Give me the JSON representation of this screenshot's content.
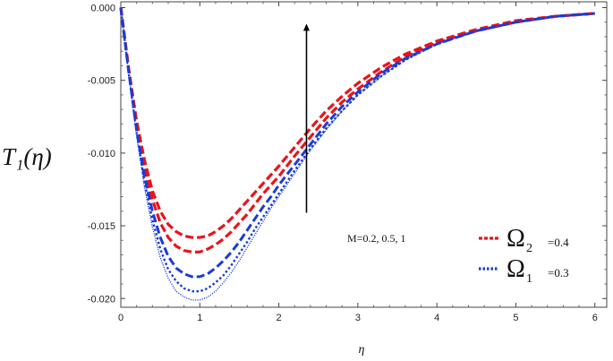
{
  "chart_data": {
    "type": "line",
    "title": "",
    "xlabel": "η",
    "ylabel": "T₁(η)",
    "xlim": [
      0,
      6.15
    ],
    "ylim": [
      -0.0206,
      0.0004
    ],
    "xticks": [
      {
        "value": 0,
        "label": "0"
      },
      {
        "value": 1,
        "label": "1"
      },
      {
        "value": 2,
        "label": "2"
      },
      {
        "value": 3,
        "label": "3"
      },
      {
        "value": 4,
        "label": "4"
      },
      {
        "value": 5,
        "label": "5"
      },
      {
        "value": 6,
        "label": "6"
      }
    ],
    "yticks": [
      {
        "value": 0,
        "label": "0.000"
      },
      {
        "value": -0.005,
        "label": "-0.005"
      },
      {
        "value": -0.01,
        "label": "-0.010"
      },
      {
        "value": -0.015,
        "label": "-0.015"
      },
      {
        "value": -0.02,
        "label": "-0.020"
      }
    ],
    "grid": false,
    "annotation": {
      "text": "M=0.2, 0.5, 1",
      "arrow_x": 2.35,
      "arrow_from": -0.0141,
      "arrow_to": -0.0011
    },
    "legend": {
      "position": "bottom-right",
      "entries": [
        {
          "symbol": "Ω",
          "subscript": "2",
          "value": "=0.4",
          "color": "#e8141b"
        },
        {
          "symbol": "Ω",
          "subscript": "1",
          "value": "=0.3",
          "color": "#1a3cd6"
        }
      ]
    },
    "series": [
      {
        "group": "Ω2=0.4",
        "M": 0.2,
        "color": "#e8141b",
        "style": "dashed",
        "width": 3.2,
        "x": [
          0,
          0.1,
          0.2,
          0.3,
          0.4,
          0.5,
          0.6,
          0.7,
          0.8,
          0.9,
          1.0,
          1.1,
          1.2,
          1.3,
          1.4,
          1.5,
          1.6,
          1.7,
          1.8,
          1.9,
          2.0,
          2.2,
          2.4,
          2.6,
          2.8,
          3.0,
          3.3,
          3.6,
          4.0,
          4.5,
          5.0,
          5.5,
          6.0
        ],
        "y": [
          0,
          -0.0042,
          -0.0078,
          -0.0105,
          -0.0126,
          -0.014,
          -0.0149,
          -0.0154,
          -0.0157,
          -0.0158,
          -0.0158,
          -0.0157,
          -0.0154,
          -0.015,
          -0.0145,
          -0.0139,
          -0.0133,
          -0.0127,
          -0.0121,
          -0.0115,
          -0.0109,
          -0.0096,
          -0.0083,
          -0.0071,
          -0.0061,
          -0.0052,
          -0.0041,
          -0.0032,
          -0.0023,
          -0.0015,
          -0.0009,
          -0.0006,
          -0.0004
        ]
      },
      {
        "group": "Ω2=0.4",
        "M": 0.5,
        "color": "#e8141b",
        "style": "dashed",
        "width": 3.2,
        "x": [
          0,
          0.1,
          0.2,
          0.3,
          0.4,
          0.5,
          0.6,
          0.7,
          0.8,
          0.9,
          1.0,
          1.1,
          1.2,
          1.3,
          1.4,
          1.5,
          1.6,
          1.7,
          1.8,
          1.9,
          2.0,
          2.2,
          2.4,
          2.6,
          2.8,
          3.0,
          3.3,
          3.6,
          4.0,
          4.5,
          5.0,
          5.5,
          6.0
        ],
        "y": [
          0,
          -0.0043,
          -0.0081,
          -0.011,
          -0.0132,
          -0.0148,
          -0.0158,
          -0.0164,
          -0.0167,
          -0.0168,
          -0.0168,
          -0.0166,
          -0.0163,
          -0.0159,
          -0.0154,
          -0.0148,
          -0.0142,
          -0.0135,
          -0.0128,
          -0.0122,
          -0.0116,
          -0.0102,
          -0.0089,
          -0.0076,
          -0.0065,
          -0.0056,
          -0.0044,
          -0.0034,
          -0.0024,
          -0.0016,
          -0.001,
          -0.0006,
          -0.0004
        ]
      },
      {
        "group": "Ω1=0.3",
        "M": 0.2,
        "color": "#1a3cd6",
        "style": "dashed",
        "width": 3.0,
        "x": [
          0,
          0.1,
          0.2,
          0.3,
          0.4,
          0.5,
          0.6,
          0.7,
          0.8,
          0.9,
          1.0,
          1.1,
          1.2,
          1.3,
          1.4,
          1.5,
          1.6,
          1.7,
          1.8,
          1.9,
          2.0,
          2.2,
          2.4,
          2.6,
          2.8,
          3.0,
          3.3,
          3.6,
          4.0,
          4.5,
          5.0,
          5.5,
          6.0
        ],
        "y": [
          0,
          -0.0044,
          -0.0084,
          -0.0116,
          -0.014,
          -0.0158,
          -0.0171,
          -0.0179,
          -0.0183,
          -0.0185,
          -0.0185,
          -0.0183,
          -0.0179,
          -0.0174,
          -0.0168,
          -0.0161,
          -0.0153,
          -0.0145,
          -0.0137,
          -0.013,
          -0.0122,
          -0.0108,
          -0.0094,
          -0.008,
          -0.0068,
          -0.0058,
          -0.0045,
          -0.0035,
          -0.0025,
          -0.0016,
          -0.001,
          -0.0006,
          -0.0004
        ]
      },
      {
        "group": "Ω1=0.3",
        "M": 0.5,
        "color": "#1a3cd6",
        "style": "dotted",
        "width": 2.4,
        "x": [
          0,
          0.1,
          0.2,
          0.3,
          0.4,
          0.5,
          0.6,
          0.7,
          0.8,
          0.9,
          1.0,
          1.1,
          1.2,
          1.3,
          1.4,
          1.5,
          1.6,
          1.7,
          1.8,
          1.9,
          2.0,
          2.2,
          2.4,
          2.6,
          2.8,
          3.0,
          3.3,
          3.6,
          4.0,
          4.5,
          5.0,
          5.5,
          6.0
        ],
        "y": [
          0,
          -0.0045,
          -0.0086,
          -0.012,
          -0.0146,
          -0.0166,
          -0.018,
          -0.0188,
          -0.0193,
          -0.0195,
          -0.0195,
          -0.0193,
          -0.0189,
          -0.0184,
          -0.0177,
          -0.0169,
          -0.0161,
          -0.0152,
          -0.0144,
          -0.0136,
          -0.0128,
          -0.0112,
          -0.0097,
          -0.0083,
          -0.0071,
          -0.006,
          -0.0047,
          -0.0036,
          -0.0025,
          -0.0016,
          -0.001,
          -0.0006,
          -0.0004
        ]
      },
      {
        "group": "Ω1=0.3",
        "M": 1,
        "color": "#1a3cd6",
        "style": "fine-dotted",
        "width": 1.3,
        "x": [
          0,
          0.1,
          0.2,
          0.3,
          0.4,
          0.5,
          0.6,
          0.7,
          0.8,
          0.9,
          1.0,
          1.1,
          1.2,
          1.3,
          1.4,
          1.5,
          1.6,
          1.7,
          1.8,
          1.9,
          2.0,
          2.2,
          2.4,
          2.6,
          2.8,
          3.0,
          3.3,
          3.6,
          4.0,
          4.5,
          5.0,
          5.5,
          6.0
        ],
        "y": [
          0,
          -0.0046,
          -0.0088,
          -0.0124,
          -0.0151,
          -0.0172,
          -0.0186,
          -0.0195,
          -0.0199,
          -0.0201,
          -0.0201,
          -0.0199,
          -0.0195,
          -0.0189,
          -0.0182,
          -0.0174,
          -0.0165,
          -0.0156,
          -0.0147,
          -0.0138,
          -0.013,
          -0.0114,
          -0.0098,
          -0.0084,
          -0.0071,
          -0.006,
          -0.0047,
          -0.0036,
          -0.0025,
          -0.0016,
          -0.001,
          -0.0006,
          -0.0004
        ]
      }
    ]
  }
}
